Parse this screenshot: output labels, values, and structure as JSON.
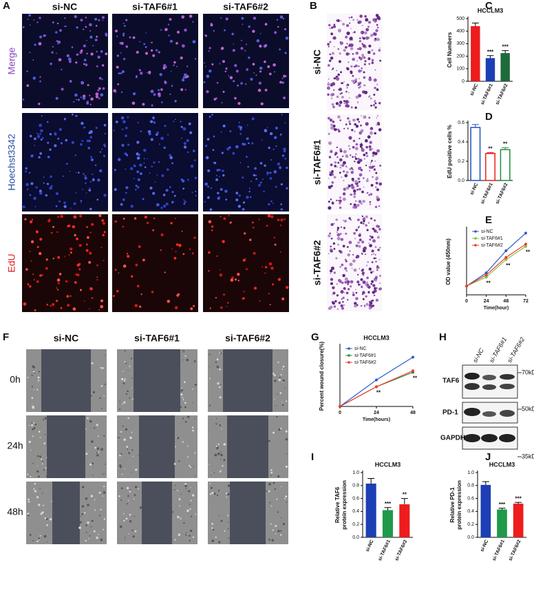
{
  "panel_labels": [
    "A",
    "B",
    "C",
    "D",
    "E",
    "F",
    "G",
    "H",
    "I",
    "J"
  ],
  "panel_a": {
    "columns": [
      "si-NC",
      "si-TAF6#1",
      "si-TAF6#2"
    ],
    "rows": [
      "Merge",
      "Hoechst3342",
      "EdU"
    ]
  },
  "panel_b": {
    "rows": [
      "si-NC",
      "si-TAF6#1",
      "si-TAF6#2"
    ]
  },
  "panel_f": {
    "columns": [
      "si-NC",
      "si-TAF6#1",
      "si-TAF6#2"
    ],
    "rows": [
      "0h",
      "24h",
      "48h"
    ]
  },
  "panel_h": {
    "lanes": [
      "si-NC",
      "si-TAF6#1",
      "si-TAF6#2"
    ],
    "proteins": [
      "TAF6",
      "PD-1",
      "GAPDH"
    ],
    "markers": [
      "70kD",
      "50kD",
      "35kD"
    ]
  },
  "chart_data": [
    {
      "type": "bar",
      "style": "filled",
      "title": "HCCLM3",
      "ylabel": "Cell Numbers",
      "categories": [
        "si-NC",
        "si-TAF6#1",
        "si-TAF6#2"
      ],
      "values": [
        440,
        185,
        225
      ],
      "errors": [
        25,
        20,
        20
      ],
      "colors": [
        "#ee1c1c",
        "#1d3fb5",
        "#1f6b3a"
      ],
      "annotations": [
        "***",
        "***"
      ],
      "ylim": [
        0,
        500
      ],
      "yticks": [
        0,
        100,
        200,
        300,
        400,
        500
      ]
    },
    {
      "type": "bar",
      "style": "outline",
      "ylabel": "EdU positive cells %",
      "categories": [
        "si-NC",
        "si-TAF6#1",
        "si-TAF6#2"
      ],
      "values": [
        0.55,
        0.28,
        0.32
      ],
      "errors": [
        0.03,
        0.01,
        0.02
      ],
      "colors": [
        "#1d4fc4",
        "#ee1c1c",
        "#1f8a3a"
      ],
      "annotations": [
        "**",
        "**"
      ],
      "ylim": [
        0,
        0.6
      ],
      "yticks": [
        {
          "value": 0,
          "label": "0.0"
        },
        0.2,
        0.4,
        0.6
      ]
    },
    {
      "type": "line",
      "ylabel": "OD value (450nm)",
      "xlabel": "Time(hour)",
      "x": [
        0,
        24,
        48,
        72
      ],
      "xlim": [
        0,
        72
      ],
      "xticks": [
        0,
        24,
        48,
        72
      ],
      "ylim": [
        0,
        3
      ],
      "series": [
        {
          "name": "si-NC",
          "color": "#2a5cc6",
          "values": [
            0.4,
            1.0,
            2.0,
            2.8
          ]
        },
        {
          "name": "si-TAF6#1",
          "color": "#7dc242",
          "values": [
            0.4,
            0.8,
            1.6,
            2.2
          ]
        },
        {
          "name": "si-TAF6#2",
          "color": "#ee3b2b",
          "values": [
            0.4,
            0.9,
            1.7,
            2.3
          ]
        }
      ],
      "annotations": [
        "**",
        "**",
        "**"
      ],
      "legend": "upper left"
    },
    {
      "type": "line",
      "title": "HCCLM3",
      "ylabel": "Percent wound closure(%)",
      "xlabel": "Time(hours)",
      "x": [
        0,
        24,
        48
      ],
      "xlim": [
        0,
        48
      ],
      "xticks": [
        0,
        24,
        48
      ],
      "ylim": [
        0,
        80
      ],
      "series": [
        {
          "name": "si-NC",
          "color": "#2a5cc6",
          "values": [
            0,
            35,
            65
          ]
        },
        {
          "name": "si-TAF6#1",
          "color": "#2f8a3a",
          "values": [
            0,
            26,
            45
          ]
        },
        {
          "name": "si-TAF6#2",
          "color": "#ee3b2b",
          "values": [
            0,
            26,
            47
          ]
        }
      ],
      "annotations": [
        "**",
        "**"
      ],
      "legend": "upper left"
    },
    {
      "type": "bar",
      "style": "filled",
      "title": "HCCLM3",
      "ylabel": [
        "Relative TAF6",
        "protein expression"
      ],
      "categories": [
        "si-NC",
        "si-TAF6#1",
        "si-TAF6#2"
      ],
      "values": [
        0.83,
        0.42,
        0.51
      ],
      "errors": [
        0.08,
        0.04,
        0.09
      ],
      "colors": [
        "#1d3fb5",
        "#1f9a4a",
        "#ee1c1c"
      ],
      "annotations": [
        "***",
        "**"
      ],
      "ylim": [
        0,
        1
      ],
      "yticks": [
        {
          "value": 0,
          "label": "0.0"
        },
        0.2,
        0.4,
        0.6,
        0.8,
        {
          "value": 1,
          "label": "1.0"
        }
      ]
    },
    {
      "type": "bar",
      "style": "filled",
      "title": "HCCLM3",
      "ylabel": [
        "Relative PD-1",
        "protein expression"
      ],
      "categories": [
        "si-NC",
        "si-TAF6#1",
        "si-TAF6#2"
      ],
      "values": [
        0.81,
        0.43,
        0.52
      ],
      "errors": [
        0.05,
        0.02,
        0.02
      ],
      "colors": [
        "#1d3fb5",
        "#1f9a4a",
        "#ee1c1c"
      ],
      "annotations": [
        "***",
        "***"
      ],
      "ylim": [
        0,
        1
      ],
      "yticks": [
        {
          "value": 0,
          "label": "0.0"
        },
        0.2,
        0.4,
        0.6,
        0.8,
        {
          "value": 1,
          "label": "1.0"
        }
      ]
    }
  ]
}
